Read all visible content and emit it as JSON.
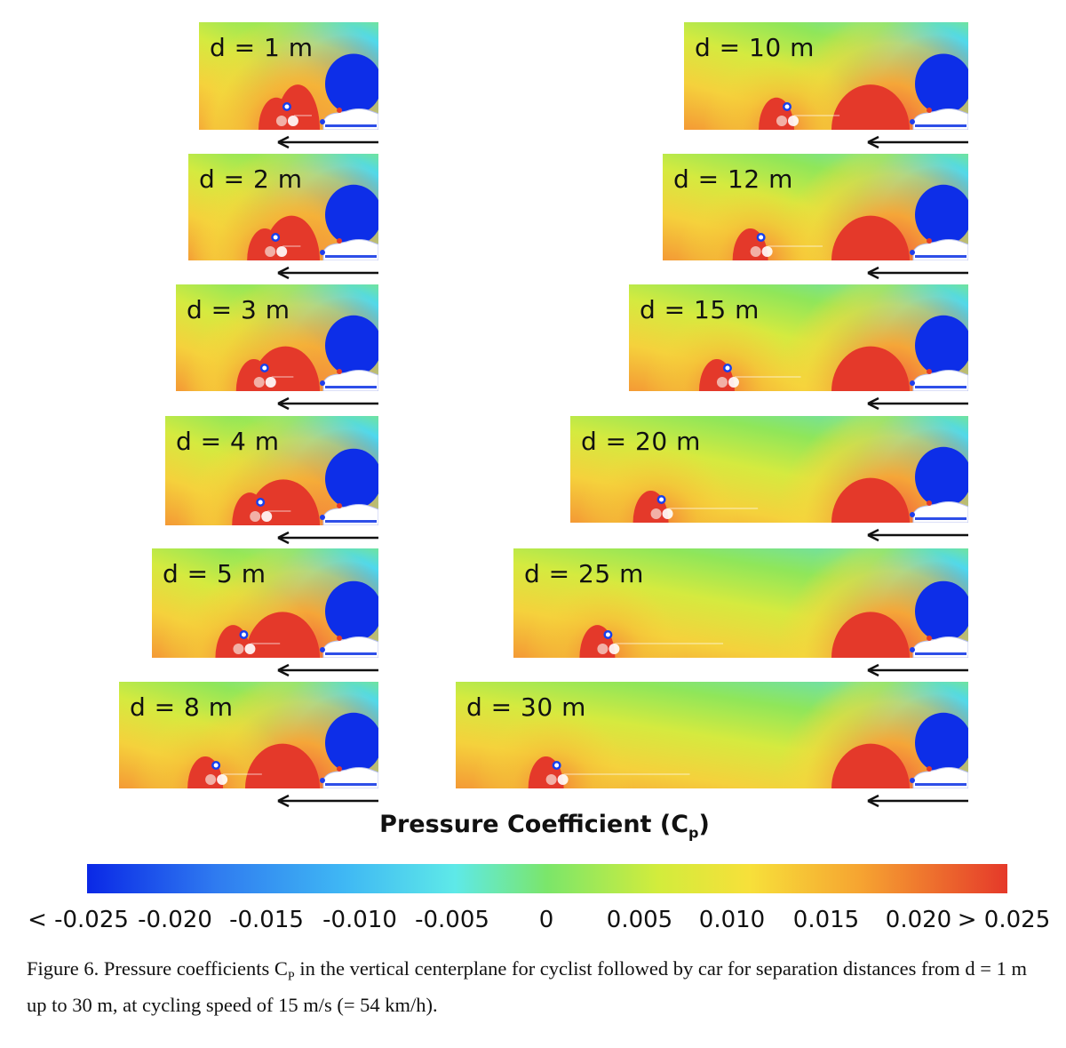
{
  "panels_left": [
    {
      "label": "d = 1 m"
    },
    {
      "label": "d = 2 m"
    },
    {
      "label": "d = 3 m"
    },
    {
      "label": "d = 4 m"
    },
    {
      "label": "d = 5 m"
    },
    {
      "label": "d = 8 m"
    }
  ],
  "panels_right": [
    {
      "label": "d = 10 m"
    },
    {
      "label": "d = 12 m"
    },
    {
      "label": "d = 15 m"
    },
    {
      "label": "d = 20 m"
    },
    {
      "label": "d = 25 m"
    },
    {
      "label": "d = 30 m"
    }
  ],
  "colorbar": {
    "title": "Pressure Coefficient (C",
    "title_sub": "p",
    "title_end": ")",
    "min": -0.025,
    "max": 0.025,
    "ticks": [
      "< -0.025",
      "-0.020",
      "-0.015",
      "-0.010",
      "-0.005",
      "0",
      "0.005",
      "0.010",
      "0.015",
      "0.020",
      "> 0.025"
    ],
    "colors": [
      "#0a28e6",
      "#3fb8f4",
      "#7be66a",
      "#f7e03a",
      "#e5392a"
    ]
  },
  "caption": {
    "prefix": "Figure 6. Pressure coefficients C",
    "sub": "P",
    "rest": " in the vertical centerplane for cyclist followed by car for separation distances from d = 1 m up to 30 m, at cycling speed of 15 m/s (= 54 km/h)."
  }
}
